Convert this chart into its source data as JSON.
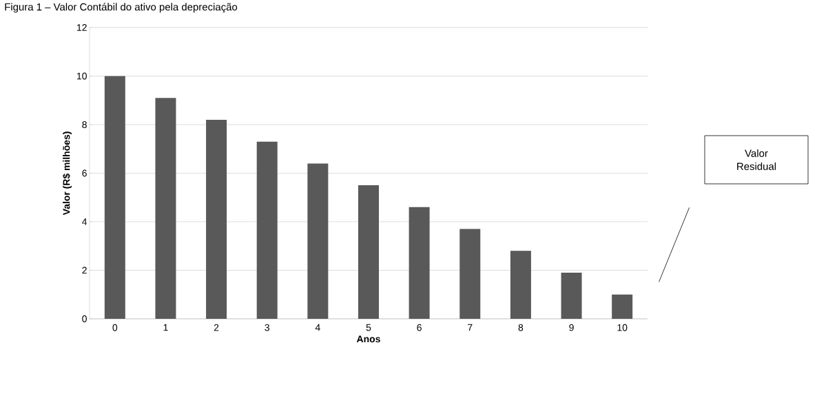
{
  "chart_data": {
    "type": "bar",
    "title": "Figura 1 – Valor Contábil do ativo pela depreciação",
    "categories": [
      "0",
      "1",
      "2",
      "3",
      "4",
      "5",
      "6",
      "7",
      "8",
      "9",
      "10"
    ],
    "values": [
      10,
      9.1,
      8.2,
      7.3,
      6.4,
      5.5,
      4.6,
      3.7,
      2.8,
      1.9,
      1.0
    ],
    "color": "#595959",
    "xlabel": "Anos",
    "ylabel": "Valor (R$ milhões)",
    "ylim": [
      0,
      12
    ],
    "yticks": [
      0,
      2,
      4,
      6,
      8,
      10,
      12
    ],
    "grid": "y",
    "annotations": [
      "Valor Residual"
    ]
  }
}
